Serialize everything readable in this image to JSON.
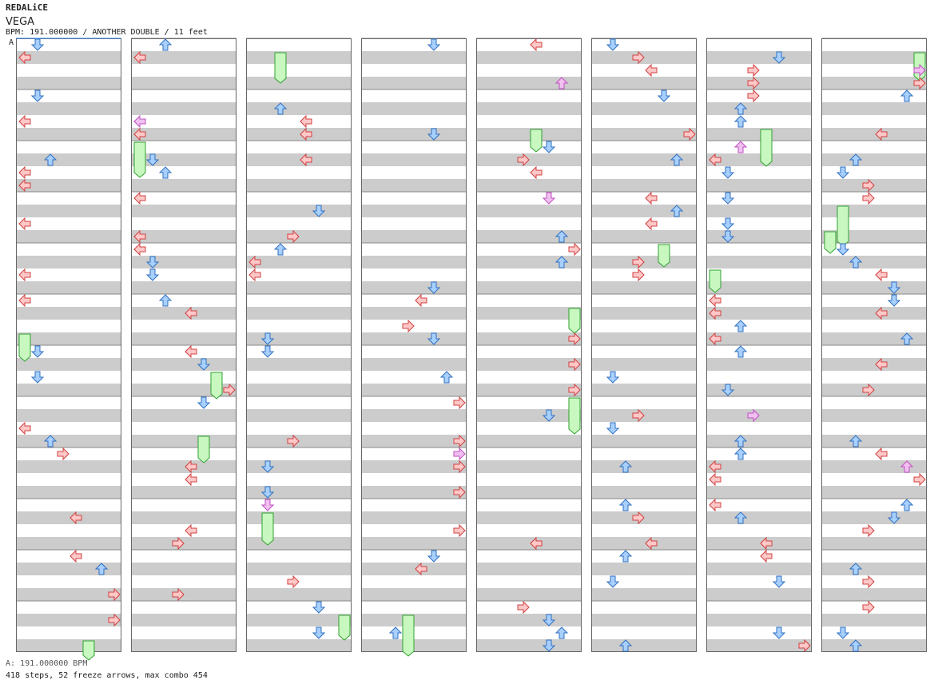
{
  "header": {
    "artist": "REDALiCE",
    "title": "VEGA",
    "info": "BPM: 191.000000 / ANOTHER DOUBLE / 11 feet",
    "bpm_marker": "A"
  },
  "footer": {
    "bpm_line": "A: 191.000000 BPM",
    "stats": "418 steps, 52 freeze arrows, max combo 454"
  },
  "colors": {
    "stripe": "#cccccc",
    "background": "#ffffff",
    "column_border": "#666666",
    "left_right_arrow": "#ffc8c8",
    "left_right_stroke": "#d04040",
    "up_down_arrow": "#a8d0ff",
    "up_down_stroke": "#3070c0",
    "shock_arrow": "#f0c0f0",
    "freeze": "#c8f8c0",
    "freeze_stroke": "#30a030"
  },
  "chart_data": {
    "type": "step-chart",
    "song": "VEGA",
    "artist": "REDALiCE",
    "difficulty": "ANOTHER DOUBLE",
    "level": 11,
    "bpm": 191,
    "total_steps": 418,
    "freeze_arrows": 52,
    "max_combo": 454,
    "columns": 8,
    "measures_per_column": 12,
    "lanes": 8
  }
}
